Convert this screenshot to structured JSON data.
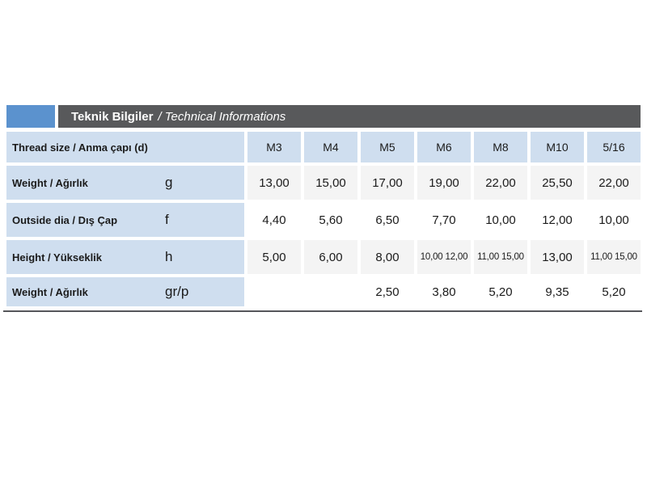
{
  "title_bar": {
    "bold_text": "Teknik Bilgiler",
    "italic_text": "/ Technical Informations"
  },
  "table": {
    "header": {
      "label": "Thread size / Anma çapı (d)",
      "columns": [
        "M3",
        "M4",
        "M5",
        "M6",
        "M8",
        "M10",
        "5/16"
      ]
    },
    "rows": [
      {
        "label": "Weight / Ağırlık",
        "symbol": "g",
        "shaded": true,
        "values": [
          "13,00",
          "15,00",
          "17,00",
          "19,00",
          "22,00",
          "25,50",
          "22,00"
        ]
      },
      {
        "label": "Outside dia / Dış Çap",
        "symbol": "f",
        "shaded": false,
        "values": [
          "4,40",
          "5,60",
          "6,50",
          "7,70",
          "10,00",
          "12,00",
          "10,00"
        ]
      },
      {
        "label": "Height / Yükseklik",
        "symbol": "h",
        "shaded": true,
        "values": [
          "5,00",
          "6,00",
          "8,00",
          "10,00 12,00",
          "11,00 15,00",
          "13,00",
          "11,00 15,00"
        ]
      },
      {
        "label": "Weight / Ağırlık",
        "symbol": "gr/p",
        "shaded": false,
        "values": [
          "",
          "",
          "2,50",
          "3,80",
          "5,20",
          "9,35",
          "5,20"
        ]
      }
    ]
  },
  "colors": {
    "accent_blue": "#5b92ce",
    "dark_bar": "#58595b",
    "cell_blue": "#cfdeef",
    "cell_gray": "#f4f4f4",
    "text": "#1b1b1b",
    "rule": "#55565a"
  }
}
